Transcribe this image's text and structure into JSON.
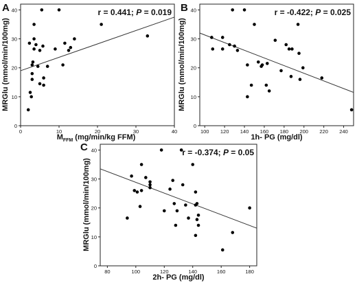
{
  "chart_data": [
    {
      "type": "scatter",
      "panel": "A",
      "stat_parts": [
        "r = 0.441; ",
        "P",
        " = 0.019"
      ],
      "xlabel_parts": [
        "M",
        "FFM",
        " (mg/min/kg FFM)"
      ],
      "ylabel": "MRGlu (mmol/min/100mg)",
      "xlim": [
        0,
        40
      ],
      "ylim": [
        0,
        42
      ],
      "xticks": [
        0,
        10,
        20,
        30,
        40
      ],
      "yticks": [
        0,
        10,
        20,
        30,
        40
      ],
      "points": [
        {
          "x": 2.0,
          "y": 5.5
        },
        {
          "x": 2.3,
          "y": 28.5
        },
        {
          "x": 2.5,
          "y": 11.5
        },
        {
          "x": 2.8,
          "y": 10.0
        },
        {
          "x": 3.0,
          "y": 16.0
        },
        {
          "x": 3.0,
          "y": 18.0
        },
        {
          "x": 3.0,
          "y": 21.0
        },
        {
          "x": 3.2,
          "y": 22.0
        },
        {
          "x": 3.5,
          "y": 26.5
        },
        {
          "x": 3.5,
          "y": 35.0
        },
        {
          "x": 3.5,
          "y": 30.0
        },
        {
          "x": 4.0,
          "y": 28.0
        },
        {
          "x": 4.5,
          "y": 20.5
        },
        {
          "x": 5.0,
          "y": 26.0
        },
        {
          "x": 5.0,
          "y": 14.5
        },
        {
          "x": 5.5,
          "y": 40.0
        },
        {
          "x": 5.8,
          "y": 27.5
        },
        {
          "x": 6.0,
          "y": 14.0
        },
        {
          "x": 6.0,
          "y": 16.5
        },
        {
          "x": 7.0,
          "y": 20.5
        },
        {
          "x": 9.0,
          "y": 26.5
        },
        {
          "x": 10.0,
          "y": 40.0
        },
        {
          "x": 11.0,
          "y": 21.0
        },
        {
          "x": 11.5,
          "y": 28.5
        },
        {
          "x": 12.5,
          "y": 26.0
        },
        {
          "x": 13.0,
          "y": 27.0
        },
        {
          "x": 14.0,
          "y": 30.0
        },
        {
          "x": 21.0,
          "y": 35.0
        },
        {
          "x": 33.0,
          "y": 31.0
        }
      ],
      "fit_line": {
        "x": [
          0,
          40
        ],
        "y": [
          19.0,
          37.5
        ]
      }
    },
    {
      "type": "scatter",
      "panel": "B",
      "stat_parts": [
        "r = -0.422; ",
        "P",
        " = 0.025"
      ],
      "xlabel_parts": [
        "1h- PG (mg/dl)"
      ],
      "ylabel": "MRGlu (mmol/min/100mg)",
      "xlim": [
        95,
        250
      ],
      "ylim": [
        0,
        42
      ],
      "xticks": [
        100,
        120,
        140,
        160,
        180,
        200,
        220,
        240
      ],
      "yticks": [
        0,
        10,
        20,
        30,
        40
      ],
      "points": [
        {
          "x": 107,
          "y": 30.5
        },
        {
          "x": 108,
          "y": 26.5
        },
        {
          "x": 118,
          "y": 30.5
        },
        {
          "x": 118,
          "y": 26.5
        },
        {
          "x": 125,
          "y": 28.0
        },
        {
          "x": 128,
          "y": 40.0
        },
        {
          "x": 130,
          "y": 27.5
        },
        {
          "x": 133,
          "y": 26.0
        },
        {
          "x": 140,
          "y": 40.0
        },
        {
          "x": 143,
          "y": 21.0
        },
        {
          "x": 143,
          "y": 10.0
        },
        {
          "x": 147,
          "y": 14.0
        },
        {
          "x": 150,
          "y": 35.0
        },
        {
          "x": 154,
          "y": 22.0
        },
        {
          "x": 157,
          "y": 20.5
        },
        {
          "x": 158,
          "y": 21.0
        },
        {
          "x": 162,
          "y": 14.0
        },
        {
          "x": 163,
          "y": 21.5
        },
        {
          "x": 165,
          "y": 12.0
        },
        {
          "x": 171,
          "y": 29.5
        },
        {
          "x": 177,
          "y": 19.0
        },
        {
          "x": 182,
          "y": 28.0
        },
        {
          "x": 185,
          "y": 26.5
        },
        {
          "x": 187,
          "y": 17.0
        },
        {
          "x": 188,
          "y": 26.5
        },
        {
          "x": 194,
          "y": 35.0
        },
        {
          "x": 195,
          "y": 25.0
        },
        {
          "x": 196,
          "y": 16.0
        },
        {
          "x": 199,
          "y": 20.0
        },
        {
          "x": 218,
          "y": 16.5
        },
        {
          "x": 248,
          "y": 5.5
        }
      ],
      "fit_line": {
        "x": [
          95,
          250
        ],
        "y": [
          32.0,
          11.5
        ]
      }
    },
    {
      "type": "scatter",
      "panel": "C",
      "stat_parts": [
        "r = -0.374; ",
        "P",
        " = 0.05"
      ],
      "xlabel_parts": [
        "2h- PG (mg/dl)"
      ],
      "ylabel": "MRGlu (mmol/min/100mg)",
      "xlim": [
        75,
        185
      ],
      "ylim": [
        0,
        42
      ],
      "xticks": [
        80,
        100,
        120,
        140,
        160,
        180
      ],
      "yticks": [
        0,
        10,
        20,
        30,
        40
      ],
      "points": [
        {
          "x": 94,
          "y": 16.5
        },
        {
          "x": 97,
          "y": 31.0
        },
        {
          "x": 99,
          "y": 26.0
        },
        {
          "x": 101,
          "y": 25.5
        },
        {
          "x": 103,
          "y": 20.5
        },
        {
          "x": 104,
          "y": 35.0
        },
        {
          "x": 104,
          "y": 26.0
        },
        {
          "x": 107,
          "y": 30.5
        },
        {
          "x": 110,
          "y": 29.0
        },
        {
          "x": 110,
          "y": 28.0
        },
        {
          "x": 110,
          "y": 27.0
        },
        {
          "x": 118,
          "y": 40.0
        },
        {
          "x": 120,
          "y": 19.0
        },
        {
          "x": 124,
          "y": 26.5
        },
        {
          "x": 126,
          "y": 29.5
        },
        {
          "x": 127,
          "y": 21.5
        },
        {
          "x": 128,
          "y": 14.0
        },
        {
          "x": 129,
          "y": 19.0
        },
        {
          "x": 132,
          "y": 40.0
        },
        {
          "x": 133,
          "y": 28.0
        },
        {
          "x": 135,
          "y": 21.0
        },
        {
          "x": 137,
          "y": 16.5
        },
        {
          "x": 140,
          "y": 35.0
        },
        {
          "x": 142,
          "y": 25.5
        },
        {
          "x": 142,
          "y": 21.0
        },
        {
          "x": 142,
          "y": 10.5
        },
        {
          "x": 143,
          "y": 21.5
        },
        {
          "x": 143,
          "y": 16.0
        },
        {
          "x": 144,
          "y": 17.5
        },
        {
          "x": 144,
          "y": 14.0
        },
        {
          "x": 161,
          "y": 5.5
        },
        {
          "x": 168,
          "y": 11.5
        },
        {
          "x": 180,
          "y": 20.0
        }
      ],
      "fit_line": {
        "x": [
          75,
          185
        ],
        "y": [
          33.5,
          13.0
        ]
      }
    }
  ]
}
